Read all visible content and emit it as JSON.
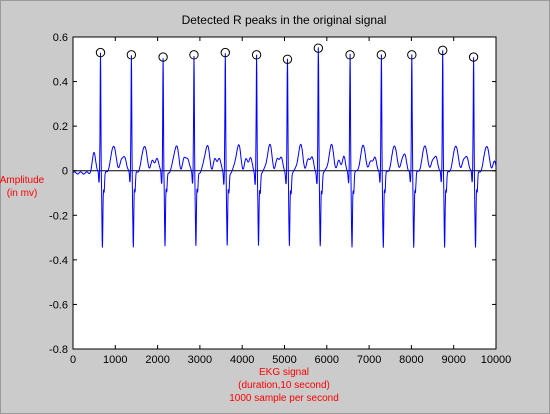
{
  "chart_data": {
    "type": "line",
    "title": "Detected R peaks in the original signal",
    "xlabel_lines": [
      "EKG signal",
      "(duration,10 second)",
      "1000 sample per second"
    ],
    "ylabel_lines": [
      "Amplitude",
      "(in mv)"
    ],
    "xlim": [
      0,
      10000
    ],
    "ylim": [
      -0.8,
      0.6
    ],
    "xticks": [
      0,
      1000,
      2000,
      3000,
      4000,
      5000,
      6000,
      7000,
      8000,
      9000,
      10000
    ],
    "yticks": [
      -0.8,
      -0.6,
      -0.4,
      -0.2,
      0,
      0.2,
      0.4,
      0.6
    ],
    "ytick_labels": [
      "-0.8",
      "-0.6",
      "-0.4",
      "-0.2",
      "0",
      "0.2",
      "0.4",
      "0.6"
    ],
    "grid": false,
    "signal_color": "#0000ff",
    "marker_color": "#000000",
    "series": [
      {
        "kind": "signal",
        "beats": [
          {
            "x": 650,
            "peak": 0.53
          },
          {
            "x": 1380,
            "peak": 0.52
          },
          {
            "x": 2130,
            "peak": 0.51
          },
          {
            "x": 2860,
            "peak": 0.52
          },
          {
            "x": 3600,
            "peak": 0.53
          },
          {
            "x": 4340,
            "peak": 0.52
          },
          {
            "x": 5070,
            "peak": 0.5
          },
          {
            "x": 5800,
            "peak": 0.55
          },
          {
            "x": 6550,
            "peak": 0.52
          },
          {
            "x": 7290,
            "peak": 0.52
          },
          {
            "x": 8010,
            "peak": 0.52
          },
          {
            "x": 8740,
            "peak": 0.54
          },
          {
            "x": 9470,
            "peak": 0.51
          }
        ]
      },
      {
        "kind": "r-peak-markers",
        "points": [
          [
            650,
            0.53
          ],
          [
            1380,
            0.52
          ],
          [
            2130,
            0.51
          ],
          [
            2860,
            0.52
          ],
          [
            3600,
            0.53
          ],
          [
            4340,
            0.52
          ],
          [
            5070,
            0.5
          ],
          [
            5800,
            0.55
          ],
          [
            6550,
            0.52
          ],
          [
            7290,
            0.52
          ],
          [
            8010,
            0.52
          ],
          [
            8740,
            0.54
          ],
          [
            9470,
            0.51
          ]
        ]
      }
    ]
  }
}
